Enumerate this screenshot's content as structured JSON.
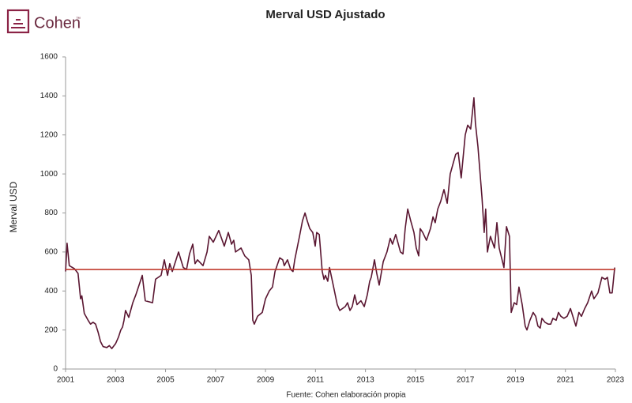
{
  "logo": {
    "name": "Cohen",
    "mark": "™"
  },
  "chart_data": {
    "type": "line",
    "title": "Merval USD Ajustado",
    "y_label": "Merval USD",
    "source": "Fuente: Cohen elaboración propia",
    "xlim": [
      2001,
      2023
    ],
    "xticks": [
      2001,
      2003,
      2005,
      2007,
      2009,
      2011,
      2013,
      2015,
      2017,
      2019,
      2021,
      2023
    ],
    "ylim": [
      0,
      1600
    ],
    "yticks": [
      0,
      200,
      400,
      600,
      800,
      1000,
      1200,
      1400,
      1600
    ],
    "reference_line": {
      "value": 510,
      "color": "#c0392b"
    },
    "series": [
      {
        "name": "Merval USD",
        "color": "#5a1631",
        "x": [
          2001.0,
          2001.06,
          2001.15,
          2001.35,
          2001.5,
          2001.6,
          2001.65,
          2001.75,
          2001.9,
          2002.0,
          2002.1,
          2002.2,
          2002.3,
          2002.4,
          2002.5,
          2002.65,
          2002.75,
          2002.85,
          2003.0,
          2003.12,
          2003.21,
          2003.28,
          2003.34,
          2003.4,
          2003.53,
          2003.69,
          2003.81,
          2004.07,
          2004.19,
          2004.48,
          2004.6,
          2004.82,
          2004.95,
          2005.08,
          2005.17,
          2005.27,
          2005.52,
          2005.71,
          2005.84,
          2005.96,
          2006.09,
          2006.18,
          2006.28,
          2006.5,
          2006.66,
          2006.75,
          2006.91,
          2007.13,
          2007.35,
          2007.51,
          2007.64,
          2007.73,
          2007.8,
          2008.02,
          2008.17,
          2008.33,
          2008.43,
          2008.49,
          2008.55,
          2008.68,
          2008.87,
          2009.0,
          2009.15,
          2009.28,
          2009.38,
          2009.57,
          2009.69,
          2009.75,
          2009.88,
          2010.01,
          2010.1,
          2010.17,
          2010.36,
          2010.48,
          2010.58,
          2010.67,
          2010.77,
          2010.89,
          2010.99,
          2011.05,
          2011.15,
          2011.27,
          2011.34,
          2011.4,
          2011.49,
          2011.56,
          2011.71,
          2011.87,
          2011.97,
          2012.19,
          2012.28,
          2012.38,
          2012.47,
          2012.57,
          2012.66,
          2012.82,
          2012.95,
          2013.07,
          2013.17,
          2013.23,
          2013.36,
          2013.45,
          2013.55,
          2013.71,
          2013.86,
          2013.99,
          2014.08,
          2014.21,
          2014.4,
          2014.5,
          2014.59,
          2014.69,
          2014.81,
          2014.94,
          2015.03,
          2015.13,
          2015.19,
          2015.29,
          2015.44,
          2015.6,
          2015.7,
          2015.79,
          2015.89,
          2016.01,
          2016.14,
          2016.27,
          2016.39,
          2016.61,
          2016.71,
          2016.83,
          2016.99,
          2017.09,
          2017.21,
          2017.34,
          2017.4,
          2017.5,
          2017.66,
          2017.75,
          2017.81,
          2017.88,
          2018.0,
          2018.16,
          2018.26,
          2018.35,
          2018.54,
          2018.64,
          2018.76,
          2018.83,
          2018.95,
          2019.05,
          2019.14,
          2019.27,
          2019.39,
          2019.46,
          2019.58,
          2019.71,
          2019.81,
          2019.9,
          2019.99,
          2020.06,
          2020.18,
          2020.31,
          2020.41,
          2020.5,
          2020.63,
          2020.72,
          2020.82,
          2020.94,
          2021.07,
          2021.2,
          2021.32,
          2021.42,
          2021.54,
          2021.64,
          2021.77,
          2021.89,
          2022.05,
          2022.14,
          2022.3,
          2022.46,
          2022.59,
          2022.68,
          2022.78,
          2022.87,
          2022.97
        ],
        "values": [
          500,
          645,
          530,
          515,
          490,
          360,
          375,
          285,
          250,
          230,
          240,
          230,
          190,
          140,
          115,
          110,
          120,
          105,
          130,
          165,
          200,
          215,
          250,
          300,
          265,
          340,
          380,
          480,
          350,
          340,
          460,
          480,
          560,
          480,
          540,
          500,
          600,
          520,
          510,
          590,
          640,
          540,
          560,
          530,
          600,
          680,
          650,
          710,
          630,
          700,
          640,
          660,
          600,
          620,
          580,
          560,
          480,
          250,
          230,
          270,
          290,
          360,
          400,
          420,
          500,
          570,
          560,
          530,
          560,
          510,
          500,
          560,
          680,
          760,
          800,
          760,
          720,
          700,
          630,
          700,
          690,
          500,
          460,
          480,
          450,
          520,
          430,
          330,
          300,
          320,
          340,
          300,
          320,
          380,
          330,
          350,
          320,
          380,
          450,
          470,
          560,
          490,
          430,
          550,
          600,
          670,
          640,
          690,
          600,
          590,
          720,
          820,
          760,
          700,
          620,
          580,
          720,
          700,
          660,
          720,
          780,
          750,
          820,
          860,
          920,
          850,
          1000,
          1100,
          1110,
          980,
          1200,
          1250,
          1230,
          1390,
          1260,
          1140,
          880,
          700,
          820,
          600,
          680,
          620,
          750,
          620,
          520,
          730,
          680,
          290,
          340,
          330,
          420,
          330,
          220,
          200,
          250,
          290,
          270,
          220,
          210,
          260,
          240,
          230,
          230,
          260,
          250,
          290,
          270,
          260,
          270,
          310,
          260,
          220,
          290,
          270,
          310,
          340,
          400,
          360,
          390,
          470,
          460,
          470,
          390,
          390,
          520
        ]
      }
    ]
  }
}
